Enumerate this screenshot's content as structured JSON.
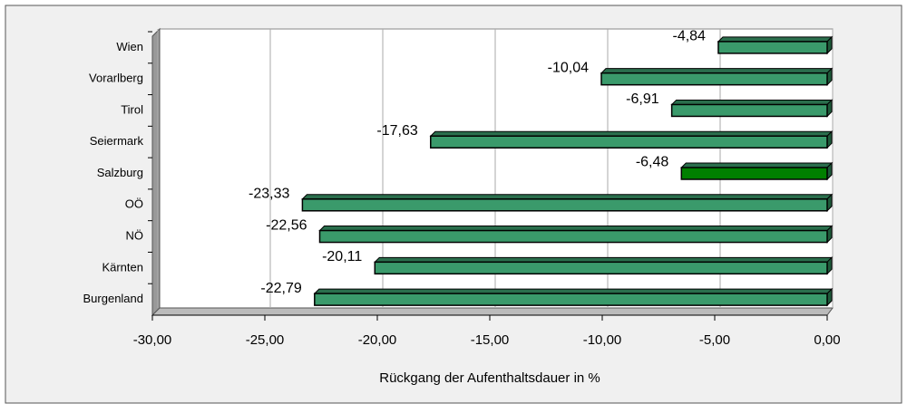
{
  "chart_data": {
    "type": "bar",
    "orientation": "horizontal",
    "x_label": "Rückgang der Aufenthaltsdauer in %",
    "categories": [
      "Wien",
      "Vorarlberg",
      "Tirol",
      "Seiermark",
      "Salzburg",
      "OÖ",
      "NÖ",
      "Kärnten",
      "Burgenland"
    ],
    "values": [
      -4.84,
      -10.04,
      -6.91,
      -17.63,
      -6.48,
      -23.33,
      -22.56,
      -20.11,
      -22.79
    ],
    "value_labels": [
      "-4,84",
      "-10,04",
      "-6,91",
      "-17,63",
      "-6,48",
      "-23,33",
      "-22,56",
      "-20,11",
      "-22,79"
    ],
    "colors": [
      "#3a9a6b",
      "#3a9a6b",
      "#3a9a6b",
      "#3a9a6b",
      "#008000",
      "#3a9a6b",
      "#3a9a6b",
      "#3a9a6b",
      "#3a9a6b"
    ],
    "xlim": [
      -30,
      0
    ],
    "xticks": [
      {
        "value": -30,
        "label": "-30,00"
      },
      {
        "value": -25,
        "label": "-25,00"
      },
      {
        "value": -20,
        "label": "-20,00"
      },
      {
        "value": -15,
        "label": "-15,00"
      },
      {
        "value": -10,
        "label": "-10,00"
      },
      {
        "value": -5,
        "label": "-5,00"
      },
      {
        "value": 0,
        "label": "0,00"
      }
    ],
    "grid": true
  }
}
